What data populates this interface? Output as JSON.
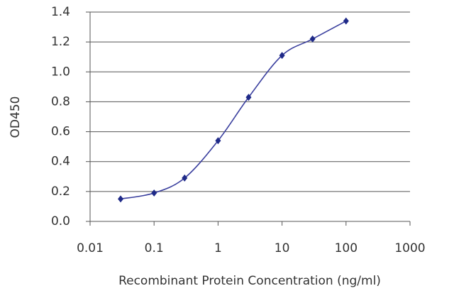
{
  "chart_data": {
    "type": "line",
    "x_label": "Recombinant Protein Concentration (ng/ml)",
    "y_label": "OD450",
    "x": [
      0.03,
      0.1,
      0.3,
      1,
      3,
      10,
      30,
      100
    ],
    "series": [
      {
        "color": "#3a3f9e",
        "marker_color": "#1f2a88",
        "values": [
          0.15,
          0.19,
          0.29,
          0.54,
          0.83,
          1.11,
          1.22,
          1.34
        ]
      }
    ],
    "x_log": true,
    "xlim": [
      0.01,
      1000
    ],
    "xticks": [
      0.01,
      0.1,
      1,
      10,
      100,
      1000
    ],
    "ylim": [
      0,
      1.4
    ],
    "yticks": [
      {
        "value": 0,
        "label": "0.0"
      },
      0.2,
      0.4,
      0.6,
      0.8,
      {
        "value": 1,
        "label": "1.0"
      },
      1.2,
      1.4
    ],
    "grid": true
  }
}
